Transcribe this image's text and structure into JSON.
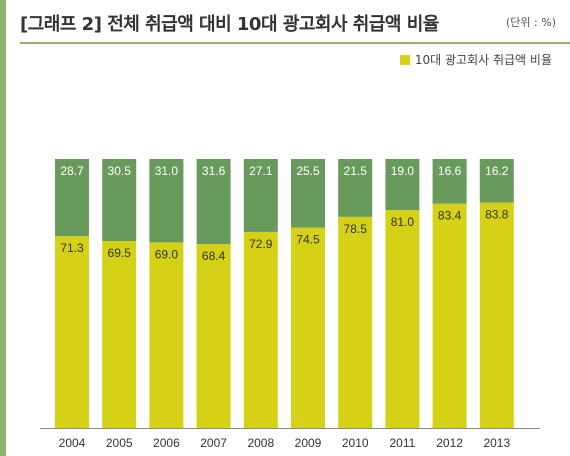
{
  "title": "[그래프 2] 전체 취급액 대비 10대 광고회사 취급액 비율",
  "unit": "(단위 : %)",
  "colors": {
    "top10": "#d4d117",
    "others": "#689a5b",
    "frame": "#8fb46e",
    "top_label": "#ffffff",
    "bottom_label": "#333333"
  },
  "chart_data": {
    "type": "bar",
    "stacked": true,
    "categories": [
      "2004",
      "2005",
      "2006",
      "2007",
      "2008",
      "2009",
      "2010",
      "2011",
      "2012",
      "2013"
    ],
    "series": [
      {
        "name": "10대 광고회사 취급액 비율",
        "values": [
          71.3,
          69.5,
          69.0,
          68.4,
          72.9,
          74.5,
          78.5,
          81.0,
          83.4,
          83.8
        ]
      },
      {
        "name": "",
        "values": [
          28.7,
          30.5,
          31.0,
          31.6,
          27.1,
          25.5,
          21.5,
          19.0,
          16.6,
          16.2
        ]
      }
    ],
    "ylim": [
      0,
      100
    ],
    "legend_position": "top-right",
    "grid": false
  }
}
